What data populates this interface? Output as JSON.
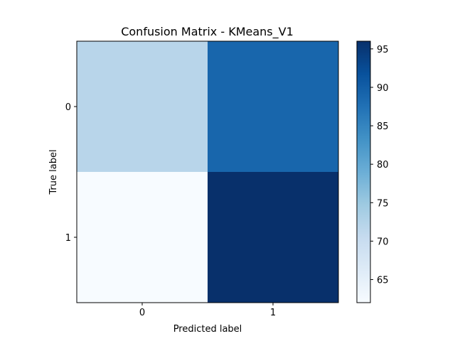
{
  "chart_data": {
    "type": "heatmap",
    "title": "Confusion Matrix - KMeans_V1",
    "xlabel": "Predicted label",
    "ylabel": "True label",
    "x_ticks": [
      "0",
      "1"
    ],
    "y_ticks": [
      "0",
      "1"
    ],
    "matrix": [
      [
        72,
        89
      ],
      [
        62,
        96
      ]
    ],
    "colormap": "Blues",
    "colorbar": {
      "vmin": 62,
      "vmax": 96,
      "ticks": [
        65,
        70,
        75,
        80,
        85,
        90,
        95
      ]
    },
    "grid": false
  }
}
